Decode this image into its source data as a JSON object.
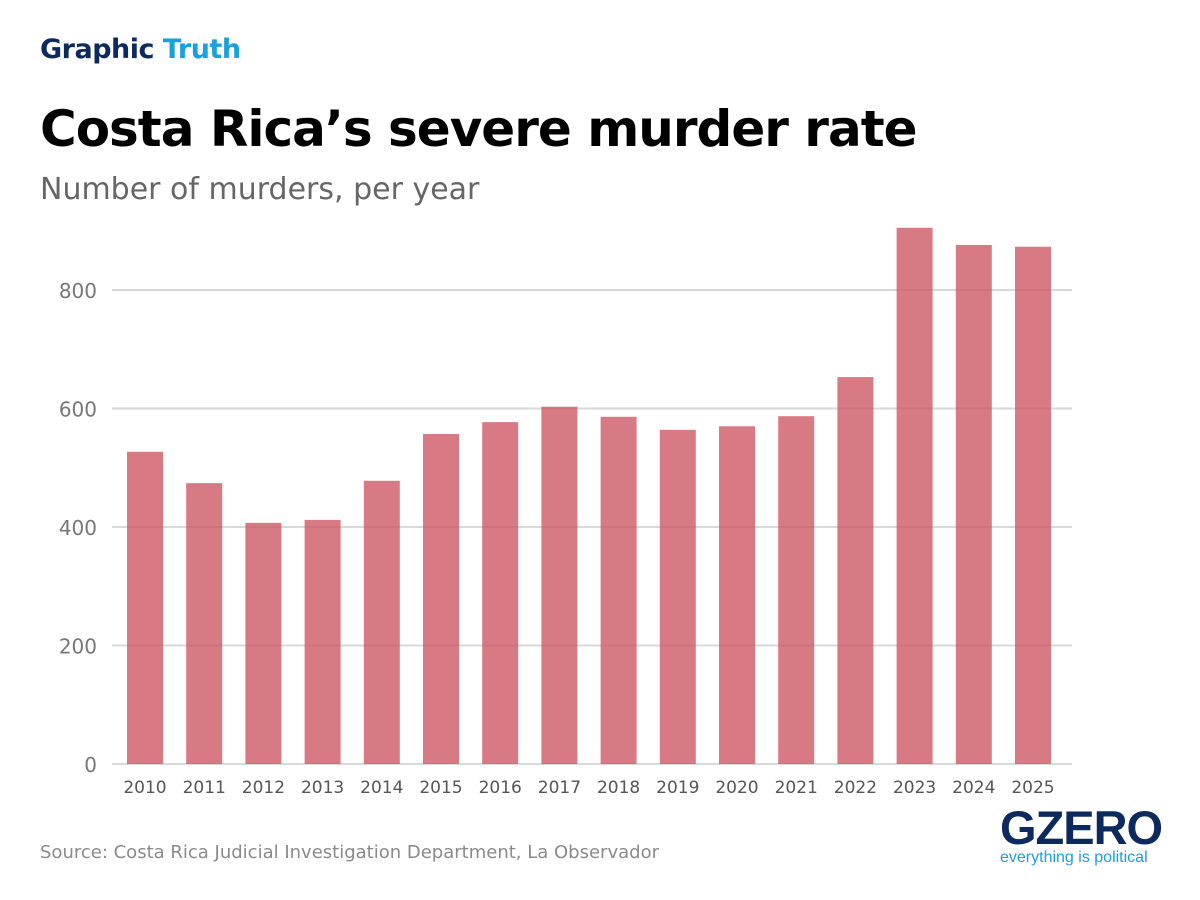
{
  "brand": {
    "part1": "Graphic",
    "part2": "Truth"
  },
  "chart_data": {
    "type": "bar",
    "title": "Costa Rica’s severe murder rate",
    "subtitle": "Number of murders, per year",
    "categories": [
      "2010",
      "2011",
      "2012",
      "2013",
      "2014",
      "2015",
      "2016",
      "2017",
      "2018",
      "2019",
      "2020",
      "2021",
      "2022",
      "2023",
      "2024",
      "2025"
    ],
    "values": [
      527,
      474,
      407,
      412,
      478,
      557,
      577,
      603,
      586,
      564,
      570,
      587,
      653,
      905,
      876,
      873
    ],
    "ylim": [
      0,
      900
    ],
    "yticks": [
      0,
      200,
      400,
      600,
      800
    ],
    "grid": true,
    "bar_color": "#cd5562"
  },
  "source": "Source: Costa Rica Judicial Investigation Department, La Observador",
  "logo": {
    "name": "GZERO",
    "tagline": "everything is political"
  }
}
